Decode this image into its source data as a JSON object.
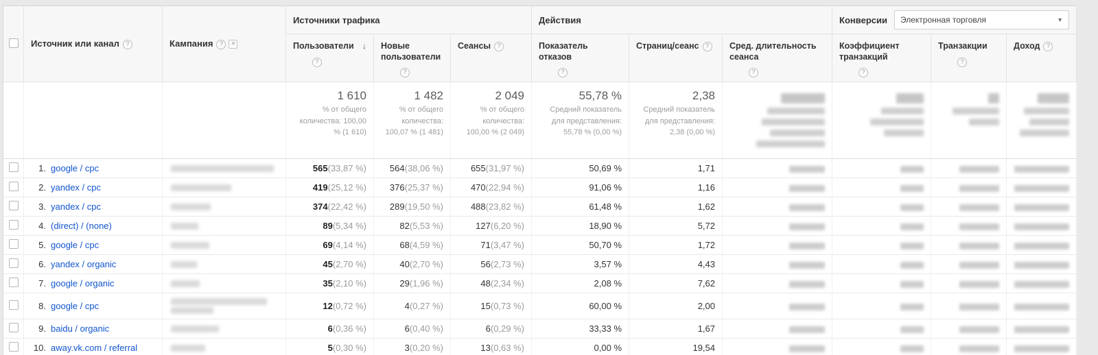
{
  "colors": {
    "link_blue": "#1155cc",
    "percent_gray": "#9a9a9a",
    "header_bg": "#f7f7f7"
  },
  "header": {
    "source_col": "Источник или канал",
    "campaign_col": "Кампания",
    "groups": {
      "traffic": "Источники трафика",
      "behavior": "Действия",
      "conversions": "Конверсии"
    },
    "conversions_select": "Электронная торговля",
    "metrics": {
      "users": "Пользователи",
      "new_users": "Новые пользователи",
      "sessions": "Сеансы",
      "bounce": "Показатель отказов",
      "pages": "Страниц/сеанс",
      "duration": "Сред. длительность сеанса",
      "txn_rate": "Коэффициент транзакций",
      "transactions": "Транзакции",
      "revenue": "Доход"
    }
  },
  "summary": {
    "users": {
      "value": "1 610",
      "sub": "% от общего количества: 100,00 % (1 610)"
    },
    "new_users": {
      "value": "1 482",
      "sub": "% от общего количества: 100,07 % (1 481)"
    },
    "sessions": {
      "value": "2 049",
      "sub": "% от общего количества: 100,00 % (2 049)"
    },
    "bounce": {
      "value": "55,78 %",
      "sub": "Средний показатель для представления: 55,78 % (0,00 %)"
    },
    "pages": {
      "value": "2,38",
      "sub": "Средний показатель для представления: 2,38 (0,00 %)"
    }
  },
  "rows": [
    {
      "rank": "1.",
      "source": "google / cpc",
      "users": "565",
      "users_pct": "(33,87 %)",
      "new_users": "564",
      "new_users_pct": "(38,06 %)",
      "sessions": "655",
      "sessions_pct": "(31,97 %)",
      "bounce": "50,69 %",
      "pages": "1,71",
      "campaign_blur": [
        150
      ]
    },
    {
      "rank": "2.",
      "source": "yandex / cpc",
      "users": "419",
      "users_pct": "(25,12 %)",
      "new_users": "376",
      "new_users_pct": "(25,37 %)",
      "sessions": "470",
      "sessions_pct": "(22,94 %)",
      "bounce": "91,06 %",
      "pages": "1,16",
      "campaign_blur": [
        88
      ]
    },
    {
      "rank": "3.",
      "source": "yandex / cpc",
      "users": "374",
      "users_pct": "(22,42 %)",
      "new_users": "289",
      "new_users_pct": "(19,50 %)",
      "sessions": "488",
      "sessions_pct": "(23,82 %)",
      "bounce": "61,48 %",
      "pages": "1,62",
      "campaign_blur": [
        58
      ]
    },
    {
      "rank": "4.",
      "source": "(direct) / (none)",
      "users": "89",
      "users_pct": "(5,34 %)",
      "new_users": "82",
      "new_users_pct": "(5,53 %)",
      "sessions": "127",
      "sessions_pct": "(6,20 %)",
      "bounce": "18,90 %",
      "pages": "5,72",
      "campaign_blur": [
        40
      ]
    },
    {
      "rank": "5.",
      "source": "google / cpc",
      "users": "69",
      "users_pct": "(4,14 %)",
      "new_users": "68",
      "new_users_pct": "(4,59 %)",
      "sessions": "71",
      "sessions_pct": "(3,47 %)",
      "bounce": "50,70 %",
      "pages": "1,72",
      "campaign_blur": [
        56
      ]
    },
    {
      "rank": "6.",
      "source": "yandex / organic",
      "users": "45",
      "users_pct": "(2,70 %)",
      "new_users": "40",
      "new_users_pct": "(2,70 %)",
      "sessions": "56",
      "sessions_pct": "(2,73 %)",
      "bounce": "3,57 %",
      "pages": "4,43",
      "campaign_blur": [
        38
      ]
    },
    {
      "rank": "7.",
      "source": "google / organic",
      "users": "35",
      "users_pct": "(2,10 %)",
      "new_users": "29",
      "new_users_pct": "(1,96 %)",
      "sessions": "48",
      "sessions_pct": "(2,34 %)",
      "bounce": "2,08 %",
      "pages": "7,62",
      "campaign_blur": [
        42
      ]
    },
    {
      "rank": "8.",
      "source": "google / cpc",
      "users": "12",
      "users_pct": "(0,72 %)",
      "new_users": "4",
      "new_users_pct": "(0,27 %)",
      "sessions": "15",
      "sessions_pct": "(0,73 %)",
      "bounce": "60,00 %",
      "pages": "2,00",
      "campaign_blur": [
        140,
        62
      ]
    },
    {
      "rank": "9.",
      "source": "baidu / organic",
      "users": "6",
      "users_pct": "(0,36 %)",
      "new_users": "6",
      "new_users_pct": "(0,40 %)",
      "sessions": "6",
      "sessions_pct": "(0,29 %)",
      "bounce": "33,33 %",
      "pages": "1,67",
      "campaign_blur": [
        70
      ]
    },
    {
      "rank": "10.",
      "source": "away.vk.com / referral",
      "users": "5",
      "users_pct": "(0,30 %)",
      "new_users": "3",
      "new_users_pct": "(0,20 %)",
      "sessions": "13",
      "sessions_pct": "(0,63 %)",
      "bounce": "0,00 %",
      "pages": "19,54",
      "campaign_blur": [
        50
      ]
    }
  ]
}
